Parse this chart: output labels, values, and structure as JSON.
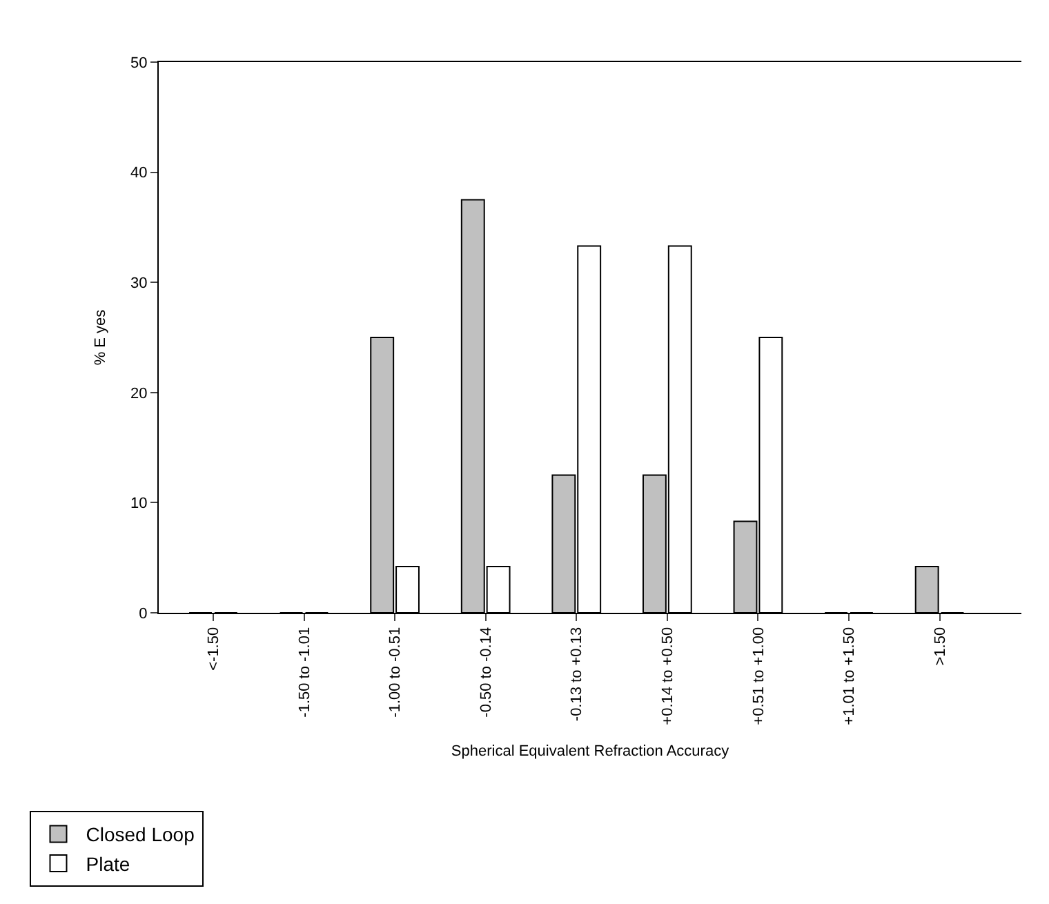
{
  "chart_data": {
    "type": "bar",
    "xlabel": "Spherical Equivalent Refraction Accuracy",
    "ylabel": "% E yes",
    "categories": [
      "<-1.50",
      "-1.50 to -1.01",
      "-1.00 to -0.51",
      "-0.50 to -0.14",
      "-0.13 to +0.13",
      "+0.14 to +0.50",
      "+0.51 to +1.00",
      "+1.01 to +1.50",
      ">1.50"
    ],
    "series": [
      {
        "name": "Closed Loop",
        "color": "#c0c0c0",
        "values": [
          0,
          0,
          25,
          37.5,
          12.5,
          12.5,
          8.3,
          0,
          4.2
        ]
      },
      {
        "name": "Plate",
        "color": "#ffffff",
        "values": [
          0,
          0,
          4.2,
          4.2,
          33.3,
          33.3,
          25,
          0,
          0
        ]
      }
    ],
    "ylim": [
      0,
      50
    ],
    "yticks": [
      0,
      10,
      20,
      30,
      40,
      50
    ],
    "legend": "bottom left"
  }
}
